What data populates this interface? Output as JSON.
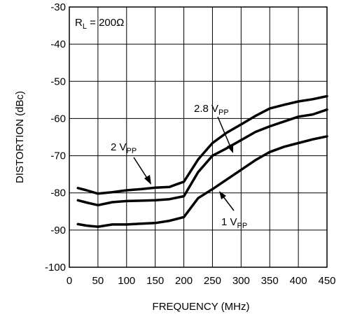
{
  "chart_data": {
    "type": "line",
    "title": "",
    "xlabel": "FREQUENCY (MHz)",
    "ylabel": "DISTORTION (dBc)",
    "xlim": [
      0,
      450
    ],
    "ylim": [
      -100,
      -30
    ],
    "xticks": [
      0,
      50,
      100,
      150,
      200,
      250,
      300,
      350,
      400,
      450
    ],
    "yticks": [
      -100,
      -90,
      -80,
      -70,
      -60,
      -50,
      -40,
      -30
    ],
    "grid": true,
    "legend": "none",
    "condition_label": {
      "main": "R",
      "sub": "L",
      "rest": " = 200Ω"
    },
    "series": [
      {
        "name": "2.8 VPP",
        "x": [
          15,
          30,
          50,
          75,
          100,
          125,
          150,
          175,
          200,
          225,
          250,
          275,
          300,
          325,
          350,
          375,
          400,
          425,
          450
        ],
        "y": [
          -78.7,
          -79.3,
          -80.2,
          -79.8,
          -79.3,
          -79.0,
          -78.6,
          -78.4,
          -77.0,
          -71.0,
          -66.6,
          -63.8,
          -61.6,
          -59.3,
          -57.3,
          -56.3,
          -55.4,
          -54.8,
          -54.0
        ]
      },
      {
        "name": "2 VPP",
        "x": [
          15,
          30,
          50,
          75,
          100,
          125,
          150,
          175,
          200,
          225,
          250,
          275,
          300,
          325,
          350,
          375,
          400,
          425,
          450
        ],
        "y": [
          -82.0,
          -82.6,
          -83.3,
          -82.5,
          -82.2,
          -82.1,
          -82.0,
          -81.7,
          -80.9,
          -74.4,
          -70.0,
          -68.0,
          -65.8,
          -63.6,
          -62.1,
          -60.8,
          -59.5,
          -58.9,
          -57.6
        ]
      },
      {
        "name": "1 VPP",
        "x": [
          15,
          30,
          50,
          75,
          100,
          125,
          150,
          175,
          200,
          225,
          250,
          275,
          300,
          325,
          350,
          375,
          400,
          425,
          450
        ],
        "y": [
          -88.4,
          -88.8,
          -89.1,
          -88.5,
          -88.5,
          -88.3,
          -88.1,
          -87.5,
          -86.5,
          -81.4,
          -79.0,
          -76.4,
          -73.8,
          -71.2,
          -69.0,
          -67.6,
          -66.6,
          -65.6,
          -64.8
        ]
      }
    ],
    "annotations": [
      {
        "main": "2.8 V",
        "sub": "PP"
      },
      {
        "main": "2 V",
        "sub": "PP"
      },
      {
        "main": "1 V",
        "sub": "PP"
      }
    ]
  }
}
